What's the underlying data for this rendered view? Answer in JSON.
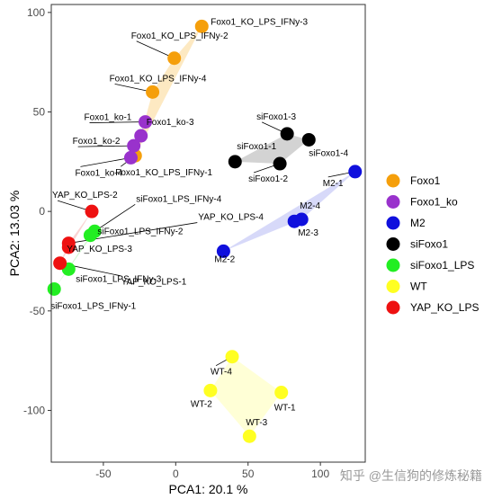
{
  "chart_data": {
    "type": "scatter",
    "title": "",
    "xlabel": "PCA1: 20.1 %",
    "ylabel": "PCA2: 13.03 %",
    "xlim": [
      -86,
      131
    ],
    "ylim": [
      -126,
      104
    ],
    "x_ticks": [
      -50,
      0,
      50,
      100
    ],
    "y_ticks": [
      -100,
      -50,
      0,
      50,
      100
    ],
    "tick_labels_x": [
      "-50",
      "0",
      "50",
      "100"
    ],
    "tick_labels_y": [
      "-100",
      "-50",
      "0",
      "50",
      "100"
    ],
    "grid": false,
    "legend_position": "right",
    "groups": [
      {
        "name": "Foxo1",
        "color": "#f59f0b",
        "hull": "#fde3b3"
      },
      {
        "name": "Foxo1_ko",
        "color": "#9932cc",
        "hull": "#e4c5f0"
      },
      {
        "name": "M2",
        "color": "#1010dd",
        "hull": "#cdd0f7"
      },
      {
        "name": "siFoxo1",
        "color": "#000000",
        "hull": "#c8c8c8"
      },
      {
        "name": "siFoxo1_LPS",
        "color": "#22ee22",
        "hull": "#c8f5c8"
      },
      {
        "name": "WT",
        "color": "#ffff22",
        "hull": "#ffffcc"
      },
      {
        "name": "YAP_KO_LPS",
        "color": "#ee1111",
        "hull": "#f9c8c8"
      }
    ],
    "points": [
      {
        "group": "Foxo1",
        "label": "Foxo1_KO_LPS_IFNy-3",
        "x": 18,
        "y": 93
      },
      {
        "group": "Foxo1",
        "label": "Foxo1_KO_LPS_IFNy-2",
        "x": -1,
        "y": 77
      },
      {
        "group": "Foxo1",
        "label": "Foxo1_KO_LPS_IFNy-4",
        "x": -16,
        "y": 60
      },
      {
        "group": "Foxo1",
        "label": "Foxo1_KO_LPS_IFNy-1",
        "x": -28,
        "y": 28
      },
      {
        "group": "Foxo1_ko",
        "label": "Foxo1_ko-1",
        "x": -21,
        "y": 45
      },
      {
        "group": "Foxo1_ko",
        "label": "Foxo1_ko-3",
        "x": -24,
        "y": 38
      },
      {
        "group": "Foxo1_ko",
        "label": "Foxo1_ko-2",
        "x": -29,
        "y": 33
      },
      {
        "group": "Foxo1_ko",
        "label": "Foxo1_ko-4",
        "x": -31,
        "y": 27
      },
      {
        "group": "siFoxo1",
        "label": "siFoxo1-3",
        "x": 77,
        "y": 39
      },
      {
        "group": "siFoxo1",
        "label": "siFoxo1-4",
        "x": 92,
        "y": 36
      },
      {
        "group": "siFoxo1",
        "label": "siFoxo1-1",
        "x": 41,
        "y": 25
      },
      {
        "group": "siFoxo1",
        "label": "siFoxo1-2",
        "x": 72,
        "y": 24
      },
      {
        "group": "M2",
        "label": "M2-1",
        "x": 124,
        "y": 20
      },
      {
        "group": "M2",
        "label": "M2-4",
        "x": 87,
        "y": -4
      },
      {
        "group": "M2",
        "label": "M2-3",
        "x": 82,
        "y": -5
      },
      {
        "group": "M2",
        "label": "M2-2",
        "x": 33,
        "y": -20
      },
      {
        "group": "siFoxo1_LPS",
        "label": "siFoxo1_LPS_IFNy-4",
        "x": -56,
        "y": -10
      },
      {
        "group": "siFoxo1_LPS",
        "label": "siFoxo1_LPS_IFNy-2",
        "x": -59,
        "y": -12
      },
      {
        "group": "siFoxo1_LPS",
        "label": "siFoxo1_LPS_IFNy-3",
        "x": -74,
        "y": -29
      },
      {
        "group": "siFoxo1_LPS",
        "label": "siFoxo1_LPS_IFNy-1",
        "x": -84,
        "y": -39
      },
      {
        "group": "YAP_KO_LPS",
        "label": "YAP_KO_LPS-2",
        "x": -58,
        "y": 0
      },
      {
        "group": "YAP_KO_LPS",
        "label": "YAP_KO_LPS-4",
        "x": -74,
        "y": -16
      },
      {
        "group": "YAP_KO_LPS",
        "label": "YAP_KO_LPS-3",
        "x": -74,
        "y": -18
      },
      {
        "group": "YAP_KO_LPS",
        "label": "YAP_KO_LPS-1",
        "x": -80,
        "y": -26
      },
      {
        "group": "WT",
        "label": "WT-4",
        "x": 39,
        "y": -73
      },
      {
        "group": "WT",
        "label": "WT-2",
        "x": 24,
        "y": -90
      },
      {
        "group": "WT",
        "label": "WT-1",
        "x": 73,
        "y": -91
      },
      {
        "group": "WT",
        "label": "WT-3",
        "x": 51,
        "y": -113
      }
    ]
  },
  "watermark": "知乎 @生信狗的修炼秘籍"
}
